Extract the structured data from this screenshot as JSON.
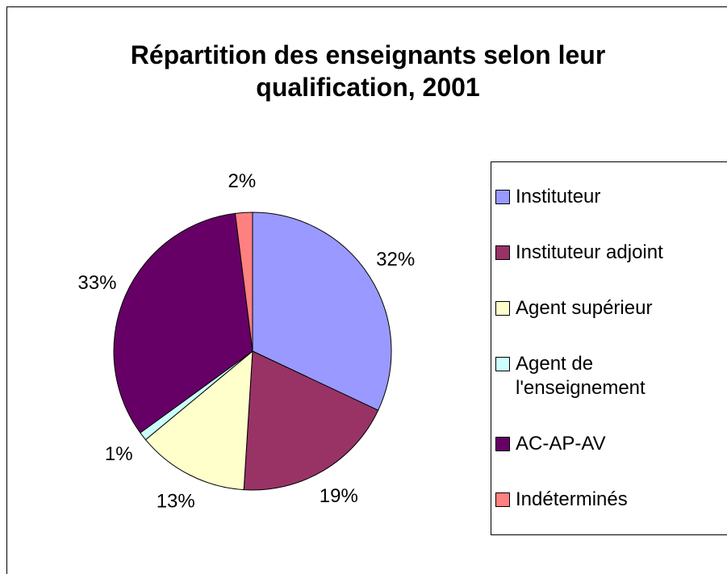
{
  "chart_data": {
    "type": "pie",
    "title": "Répartition des enseignants selon leur qualification, 2001",
    "categories": [
      "Instituteur",
      "Instituteur adjoint",
      "Agent supérieur",
      "Agent de l'enseignement",
      "AC-AP-AV",
      "Indéterminés"
    ],
    "values": [
      32,
      19,
      13,
      1,
      33,
      2
    ],
    "value_labels": [
      "32%",
      "19%",
      "13%",
      "1%",
      "33%",
      "2%"
    ],
    "colors": [
      "#9999ff",
      "#993366",
      "#ffffcc",
      "#ccffff",
      "#660066",
      "#ff8080"
    ],
    "legend": "right"
  }
}
